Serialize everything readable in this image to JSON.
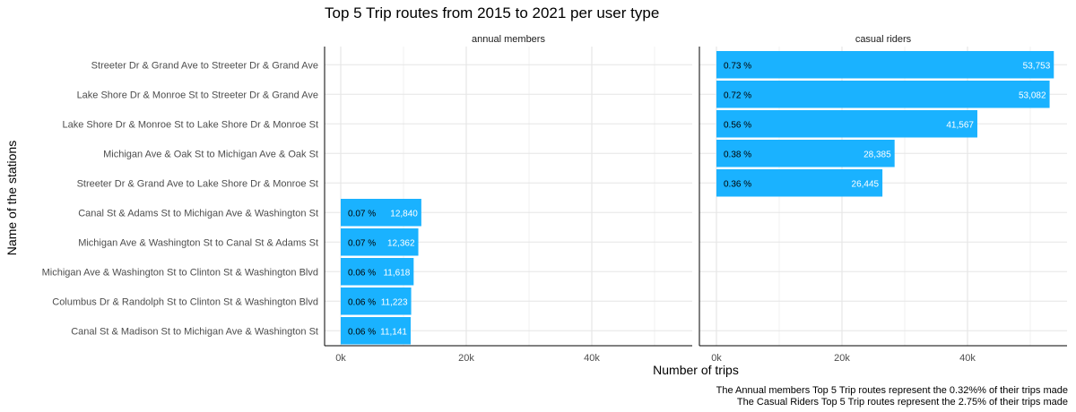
{
  "chart_data": {
    "type": "bar",
    "orientation": "horizontal",
    "title": "Top 5 Trip routes from 2015 to 2021 per user type",
    "xlabel": "Number of trips",
    "ylabel": "Name of the stations",
    "xlim": [
      0,
      58000
    ],
    "x_ticks": [
      0,
      20000,
      40000
    ],
    "x_tick_labels": [
      "0k",
      "20k",
      "40k"
    ],
    "grid": true,
    "legend": "none",
    "bar_color": "#1ab2ff",
    "categories": [
      "Streeter Dr & Grand Ave to Streeter Dr & Grand Ave",
      "Lake Shore Dr & Monroe St to Streeter Dr & Grand Ave",
      "Lake Shore Dr & Monroe St to Lake Shore Dr & Monroe St",
      "Michigan Ave & Oak St to Michigan Ave & Oak St",
      "Streeter Dr & Grand Ave to Lake Shore Dr & Monroe St",
      "Canal St & Adams St to Michigan Ave & Washington St",
      "Michigan Ave & Washington St to Canal St & Adams St",
      "Michigan Ave & Washington St to Clinton St & Washington Blvd",
      "Columbus Dr & Randolph St to Clinton St & Washington Blvd",
      "Canal St & Madison St to Michigan Ave & Washington St"
    ],
    "panels": [
      {
        "name": "annual members",
        "bars": [
          {
            "category_index": 5,
            "value": 12840,
            "value_label": "12,840",
            "pct_label": "0.07 %"
          },
          {
            "category_index": 6,
            "value": 12362,
            "value_label": "12,362",
            "pct_label": "0.07 %"
          },
          {
            "category_index": 7,
            "value": 11618,
            "value_label": "11,618",
            "pct_label": "0.06 %"
          },
          {
            "category_index": 8,
            "value": 11223,
            "value_label": "11,223",
            "pct_label": "0.06 %"
          },
          {
            "category_index": 9,
            "value": 11141,
            "value_label": "11,141",
            "pct_label": "0.06 %"
          }
        ]
      },
      {
        "name": "casual riders",
        "bars": [
          {
            "category_index": 0,
            "value": 53753,
            "value_label": "53,753",
            "pct_label": "0.73 %"
          },
          {
            "category_index": 1,
            "value": 53082,
            "value_label": "53,082",
            "pct_label": "0.72 %"
          },
          {
            "category_index": 2,
            "value": 41567,
            "value_label": "41,567",
            "pct_label": "0.56 %"
          },
          {
            "category_index": 3,
            "value": 28385,
            "value_label": "28,385",
            "pct_label": "0.38 %"
          },
          {
            "category_index": 4,
            "value": 26445,
            "value_label": "26,445",
            "pct_label": "0.36 %"
          }
        ]
      }
    ],
    "caption": [
      "The Annual members Top 5 Trip routes represent the 0.32%% of their trips made",
      "The Casual Riders Top 5 Trip routes represent the 2.75% of their trips made"
    ]
  }
}
